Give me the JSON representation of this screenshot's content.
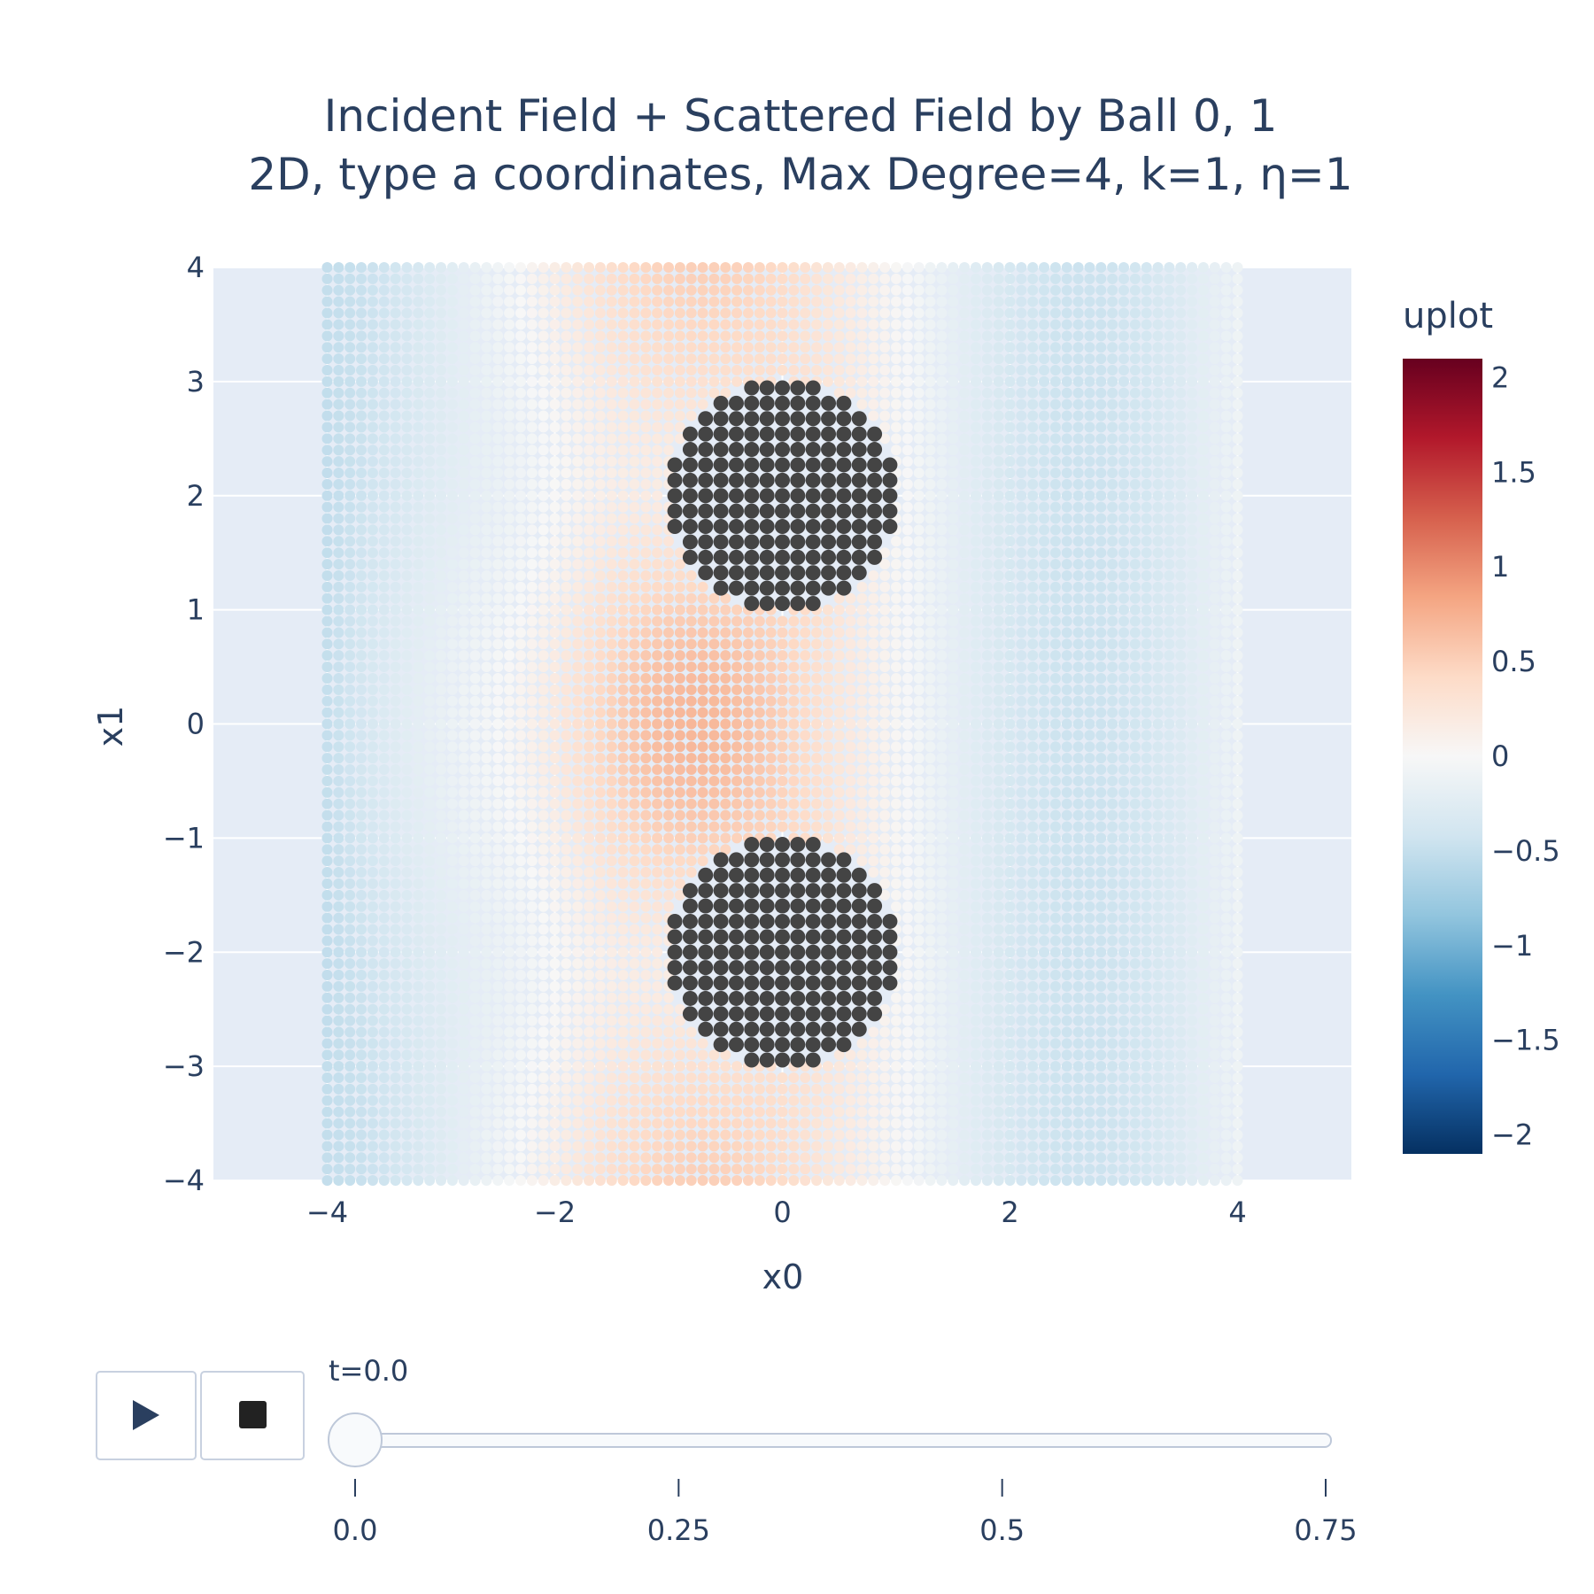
{
  "chart_data": {
    "type": "scatter",
    "title_lines": [
      "Incident Field + Scattered Field by Ball 0, 1",
      "2D, type a coordinates, Max Degree=4, k=1, η=1"
    ],
    "xlabel": "x0",
    "ylabel": "x1",
    "xlim": [
      -5,
      5
    ],
    "ylim": [
      -4,
      4
    ],
    "x_ticks": [
      -4,
      -2,
      0,
      2,
      4
    ],
    "x_tick_labels": [
      "−4",
      "−2",
      "0",
      "2",
      "4"
    ],
    "y_ticks": [
      -4,
      -3,
      -2,
      -1,
      0,
      1,
      2,
      3,
      4
    ],
    "y_tick_labels": [
      "−4",
      "−3",
      "−2",
      "−1",
      "0",
      "1",
      "2",
      "3",
      "4"
    ],
    "grid": true,
    "point_grid": {
      "x_range": [
        -4,
        4
      ],
      "y_range": [
        -4,
        4
      ],
      "step": 0.1
    },
    "balls": [
      {
        "name": "Ball 0",
        "center": [
          0,
          2
        ],
        "radius": 1,
        "color": "#444444"
      },
      {
        "name": "Ball 1",
        "center": [
          0,
          -2
        ],
        "radius": 1,
        "color": "#444444"
      }
    ],
    "colorbar": {
      "title": "uplot",
      "range": [
        -2.1,
        2.1
      ],
      "ticks": [
        2,
        1.5,
        1,
        0.5,
        0,
        -0.5,
        -1,
        -1.5,
        -2
      ],
      "tick_labels": [
        "2",
        "1.5",
        "1",
        "0.5",
        "0",
        "−0.5",
        "−1",
        "−1.5",
        "−2"
      ],
      "colorscale": "RdBu",
      "colors": [
        "#053061",
        "#2166ac",
        "#4393c3",
        "#92c5de",
        "#d1e5f0",
        "#f7f7f7",
        "#fddbc7",
        "#f4a582",
        "#d6604d",
        "#b2182b",
        "#67001f"
      ]
    }
  },
  "controls": {
    "play_icon": "play-icon",
    "stop_icon": "stop-icon",
    "current_label": "t=0.0",
    "slider_value": 0.0,
    "slider_steps": [
      0.0,
      0.25,
      0.5,
      0.75
    ],
    "slider_step_labels": [
      "0.0",
      "0.25",
      "0.5",
      "0.75"
    ]
  },
  "colors": {
    "plot_bg": "#e5ecf6",
    "grid": "#ffffff",
    "text": "#2a3f5f",
    "ball": "#444444"
  }
}
